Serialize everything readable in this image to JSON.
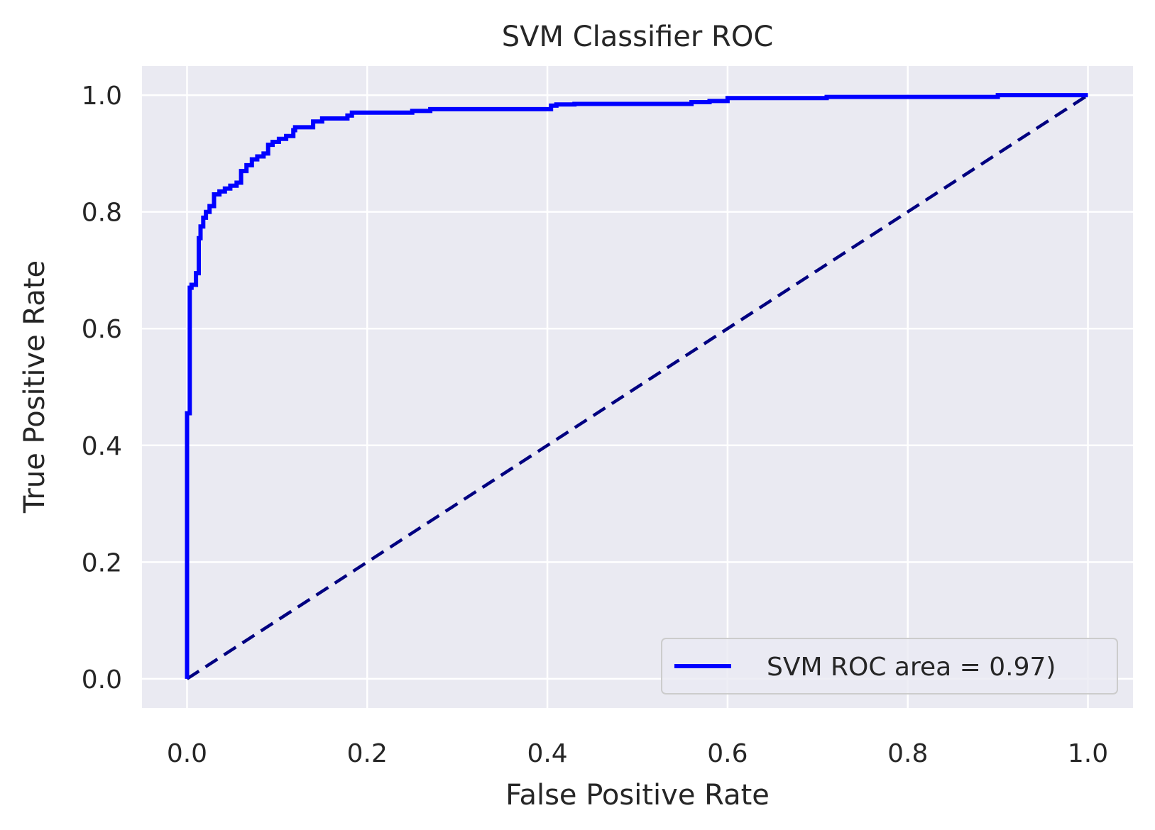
{
  "chart_data": {
    "type": "line",
    "title": "SVM Classifier ROC",
    "xlabel": "False Positive Rate",
    "ylabel": "True Positive Rate",
    "xlim": [
      -0.05,
      1.05
    ],
    "ylim": [
      -0.05,
      1.05
    ],
    "xticks": [
      0.0,
      0.2,
      0.4,
      0.6,
      0.8,
      1.0
    ],
    "yticks": [
      0.0,
      0.2,
      0.4,
      0.6,
      0.8,
      1.0
    ],
    "xtick_labels": [
      "0.0",
      "0.2",
      "0.4",
      "0.6",
      "0.8",
      "1.0"
    ],
    "ytick_labels": [
      "0.0",
      "0.2",
      "0.4",
      "0.6",
      "0.8",
      "1.0"
    ],
    "grid": true,
    "legend_position": "lower-right",
    "colors": {
      "plot_background": "#eaeaf2",
      "grid": "#ffffff",
      "roc": "#0000ff",
      "diagonal": "#000080",
      "text": "#262626"
    },
    "series": [
      {
        "name": "SVM ROC area = 0.97)",
        "style": "solid",
        "x": [
          0.0,
          0.0,
          0.003,
          0.003,
          0.005,
          0.005,
          0.01,
          0.01,
          0.013,
          0.013,
          0.015,
          0.015,
          0.018,
          0.018,
          0.021,
          0.021,
          0.025,
          0.025,
          0.03,
          0.03,
          0.036,
          0.036,
          0.042,
          0.042,
          0.048,
          0.048,
          0.055,
          0.055,
          0.06,
          0.06,
          0.066,
          0.066,
          0.072,
          0.072,
          0.078,
          0.078,
          0.085,
          0.085,
          0.09,
          0.09,
          0.095,
          0.095,
          0.102,
          0.102,
          0.11,
          0.11,
          0.118,
          0.118,
          0.12,
          0.12,
          0.14,
          0.14,
          0.15,
          0.15,
          0.178,
          0.178,
          0.183,
          0.183,
          0.25,
          0.25,
          0.27,
          0.27,
          0.404,
          0.404,
          0.41,
          0.41,
          0.43,
          0.43,
          0.56,
          0.56,
          0.58,
          0.58,
          0.6,
          0.6,
          0.71,
          0.71,
          0.9,
          0.9,
          1.0
        ],
        "y": [
          0.0,
          0.455,
          0.455,
          0.67,
          0.67,
          0.675,
          0.675,
          0.695,
          0.695,
          0.755,
          0.755,
          0.775,
          0.775,
          0.79,
          0.79,
          0.8,
          0.8,
          0.81,
          0.81,
          0.83,
          0.83,
          0.835,
          0.835,
          0.84,
          0.84,
          0.845,
          0.845,
          0.85,
          0.85,
          0.87,
          0.87,
          0.88,
          0.88,
          0.89,
          0.89,
          0.895,
          0.895,
          0.9,
          0.9,
          0.915,
          0.915,
          0.92,
          0.92,
          0.925,
          0.925,
          0.93,
          0.93,
          0.94,
          0.94,
          0.945,
          0.945,
          0.955,
          0.955,
          0.96,
          0.96,
          0.965,
          0.965,
          0.97,
          0.97,
          0.973,
          0.973,
          0.976,
          0.976,
          0.982,
          0.982,
          0.984,
          0.984,
          0.985,
          0.985,
          0.988,
          0.988,
          0.99,
          0.99,
          0.995,
          0.995,
          0.997,
          0.997,
          1.0,
          1.0
        ]
      },
      {
        "style": "dashed",
        "x": [
          0.0,
          1.0
        ],
        "y": [
          0.0,
          1.0
        ]
      }
    ]
  }
}
